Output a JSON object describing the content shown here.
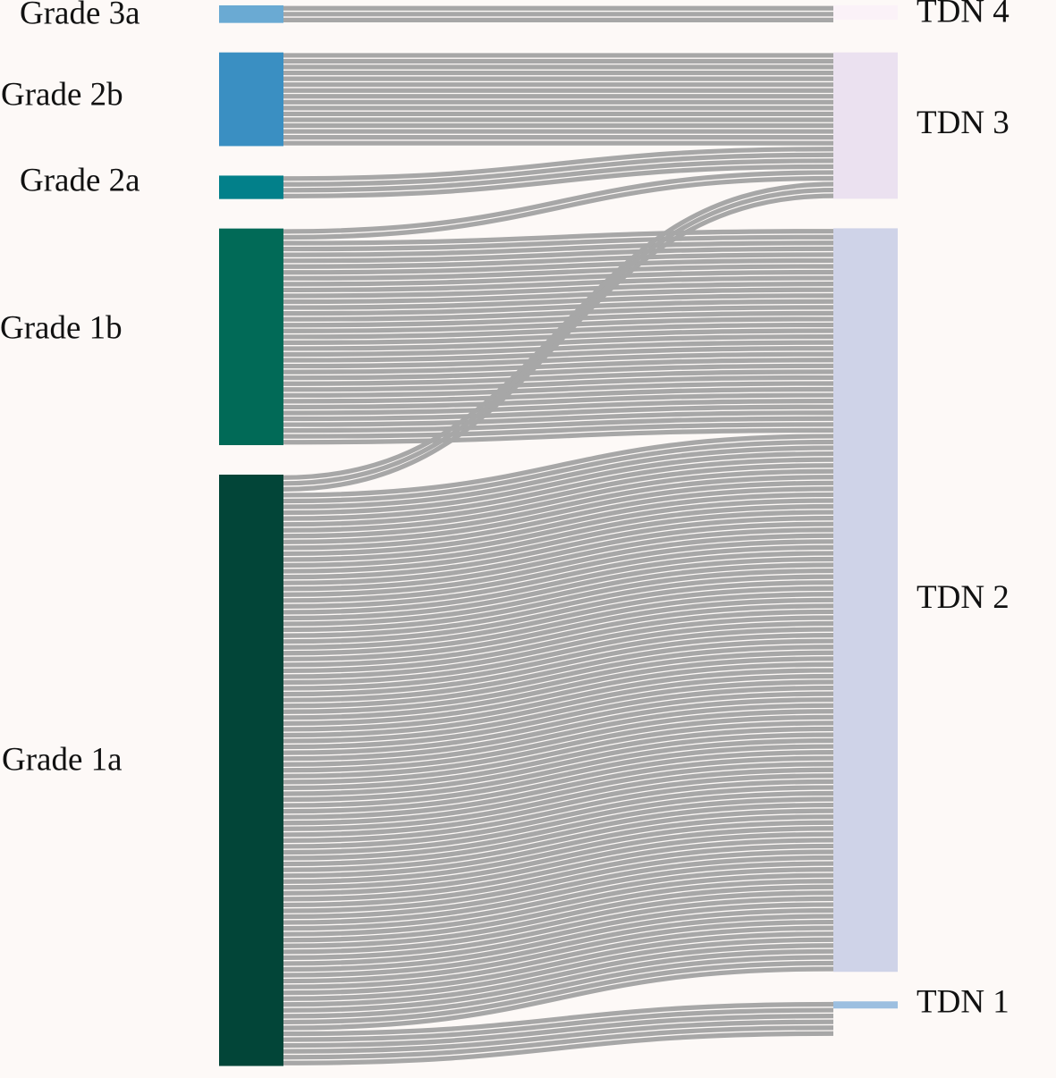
{
  "chart_data": {
    "type": "sankey",
    "unit": "patients",
    "sources": [
      {
        "id": "g3a",
        "label": "Grade 3a",
        "color": "#6aaad3"
      },
      {
        "id": "g2b",
        "label": "Grade 2b",
        "color": "#3a8fc2"
      },
      {
        "id": "g2a",
        "label": "Grade 2a",
        "color": "#02808a"
      },
      {
        "id": "g1b",
        "label": "Grade 1b",
        "color": "#016a57"
      },
      {
        "id": "g1a",
        "label": "Grade 1a",
        "color": "#024538"
      }
    ],
    "targets": [
      {
        "id": "tdn4",
        "label": "TDN 4",
        "color": "#fbf2f8"
      },
      {
        "id": "tdn3",
        "label": "TDN 3",
        "color": "#ebe1f0"
      },
      {
        "id": "tdn2",
        "label": "TDN 2",
        "color": "#cfd3e8"
      },
      {
        "id": "tdn1",
        "label": "TDN 1",
        "color": "#9cbfe0"
      }
    ],
    "links": [
      {
        "source": "g3a",
        "target": "tdn4",
        "value": 3
      },
      {
        "source": "g2b",
        "target": "tdn3",
        "value": 16
      },
      {
        "source": "g2a",
        "target": "tdn3",
        "value": 4
      },
      {
        "source": "g1b",
        "target": "tdn3",
        "value": 2
      },
      {
        "source": "g1b",
        "target": "tdn2",
        "value": 35
      },
      {
        "source": "g1a",
        "target": "tdn3",
        "value": 3
      },
      {
        "source": "g1a",
        "target": "tdn2",
        "value": 92
      },
      {
        "source": "g1a",
        "target": "tdn1",
        "value": 6
      }
    ]
  }
}
